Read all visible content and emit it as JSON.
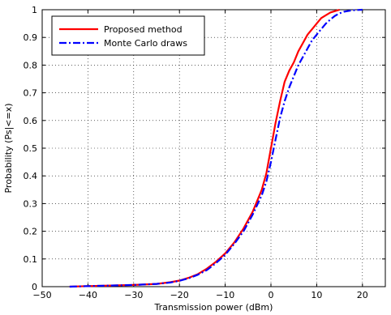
{
  "chart_data": {
    "type": "line",
    "xlabel": "Transmission power (dBm)",
    "ylabel": "Probability (Ps|<=x)",
    "xlim": [
      -50,
      25
    ],
    "ylim": [
      0,
      1
    ],
    "x_ticks": [
      -50,
      -40,
      -30,
      -20,
      -10,
      0,
      10,
      20
    ],
    "y_ticks": [
      0,
      0.1,
      0.2,
      0.3,
      0.4,
      0.5,
      0.6,
      0.7,
      0.8,
      0.9,
      1
    ],
    "x_tick_labels": [
      "−50",
      "−40",
      "−30",
      "−20",
      "−10",
      "0",
      "10",
      "20"
    ],
    "y_tick_labels": [
      "0",
      "0.1",
      "0.2",
      "0.3",
      "0.4",
      "0.5",
      "0.6",
      "0.7",
      "0.8",
      "0.9",
      "1"
    ],
    "grid": true,
    "legend_position": "top-left",
    "series": [
      {
        "name": "Proposed method",
        "color": "#ff0000",
        "line_style": "solid",
        "x": [
          -44,
          -40,
          -35,
          -30,
          -25,
          -22,
          -20,
          -18,
          -16,
          -14,
          -12,
          -10,
          -8,
          -6,
          -4,
          -2,
          -1,
          0,
          1,
          2,
          3,
          4,
          5,
          6,
          7,
          8,
          9,
          10,
          11,
          12,
          13,
          14,
          15
        ],
        "y": [
          0.0,
          0.002,
          0.004,
          0.006,
          0.01,
          0.016,
          0.022,
          0.032,
          0.045,
          0.065,
          0.09,
          0.12,
          0.16,
          0.21,
          0.27,
          0.35,
          0.41,
          0.5,
          0.59,
          0.67,
          0.74,
          0.78,
          0.81,
          0.85,
          0.88,
          0.91,
          0.93,
          0.95,
          0.97,
          0.98,
          0.99,
          0.995,
          1.0
        ]
      },
      {
        "name": "Monte Carlo draws",
        "color": "#0000ff",
        "line_style": "dashdot",
        "x": [
          -44,
          -40,
          -35,
          -30,
          -25,
          -22,
          -20,
          -18,
          -16,
          -14,
          -12,
          -10,
          -8,
          -6,
          -4,
          -2,
          -1,
          0,
          1,
          2,
          3,
          4,
          5,
          6,
          7,
          8,
          9,
          10,
          11,
          12,
          13,
          14,
          15,
          16,
          17,
          18,
          19,
          20
        ],
        "y": [
          0.0,
          0.002,
          0.004,
          0.006,
          0.01,
          0.015,
          0.021,
          0.03,
          0.043,
          0.06,
          0.085,
          0.115,
          0.155,
          0.2,
          0.26,
          0.33,
          0.38,
          0.45,
          0.53,
          0.61,
          0.67,
          0.72,
          0.76,
          0.8,
          0.83,
          0.86,
          0.89,
          0.91,
          0.93,
          0.95,
          0.965,
          0.978,
          0.987,
          0.993,
          0.996,
          0.998,
          0.999,
          1.0
        ]
      }
    ]
  }
}
